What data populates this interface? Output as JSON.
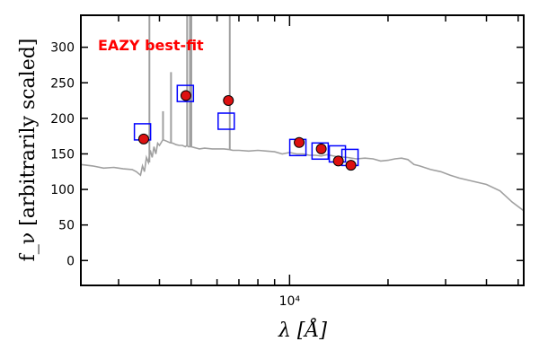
{
  "chart_data": {
    "type": "scatter",
    "title": "",
    "annotation": "EAZY best-fit",
    "annotation_color": "#ff0000",
    "xlabel": "λ [Å]",
    "ylabel": "f_ν [arbitrarily scaled]",
    "xscale": "log",
    "xlim": [
      2300,
      52000
    ],
    "ylim": [
      -35,
      345
    ],
    "yticks": [
      0,
      50,
      100,
      150,
      200,
      250,
      300
    ],
    "xticks_major": [
      {
        "value": 10000,
        "label": "10⁴"
      }
    ],
    "xticks_minor": [
      3000,
      4000,
      5000,
      6000,
      7000,
      8000,
      9000,
      20000,
      30000,
      40000,
      50000
    ],
    "grid": false,
    "legend": "none",
    "colors": {
      "template": "#a0a0a0",
      "model": "#0000ff",
      "observed_face": "#dd1111",
      "observed_edge": "#000000"
    },
    "series": [
      {
        "name": "",
        "style": "line",
        "x": [
          2300,
          2500,
          2700,
          2900,
          3100,
          3300,
          3400,
          3500,
          3550,
          3600,
          3650,
          3700,
          3750,
          3800,
          3850,
          3900,
          3950,
          4000,
          4100,
          4200,
          4300,
          4400,
          4500,
          4600,
          4700,
          4800,
          4861,
          4900,
          5000,
          5100,
          5200,
          5300,
          5500,
          5800,
          6000,
          6300,
          6563,
          6700,
          7000,
          7500,
          8000,
          8500,
          9000,
          9500,
          10000,
          10500,
          11000,
          11500,
          12000,
          12500,
          13000,
          14000,
          15000,
          16000,
          17000,
          18000,
          19000,
          20000,
          21000,
          22000,
          23000,
          24000,
          25000,
          27000,
          29000,
          31000,
          33000,
          36000,
          40000,
          44000,
          48000,
          52000
        ],
        "y": [
          135,
          133,
          130,
          131,
          129,
          128,
          125,
          120,
          133,
          125,
          145,
          138,
          155,
          145,
          160,
          150,
          165,
          162,
          170,
          168,
          166,
          165,
          163,
          162,
          162,
          160,
          162,
          160,
          160,
          159,
          158,
          157,
          158,
          157,
          157,
          157,
          156,
          155,
          155,
          154,
          155,
          154,
          153,
          150,
          152,
          150,
          150,
          148,
          148,
          147,
          149,
          146,
          145,
          143,
          144,
          143,
          140,
          141,
          143,
          144,
          142,
          135,
          133,
          128,
          125,
          120,
          116,
          112,
          107,
          98,
          82,
          70
        ]
      },
      {
        "name": "",
        "style": "emission-spikes",
        "x": [
          3727,
          4102,
          4340,
          4861,
          4959,
          5007,
          6563
        ],
        "y": [
          345,
          210,
          265,
          345,
          345,
          345,
          345
        ]
      },
      {
        "name": "",
        "style": "open-square",
        "x": [
          3550,
          4800,
          6400,
          10600,
          12400,
          14000,
          15300
        ],
        "y": [
          181,
          235,
          196,
          159,
          154,
          150,
          145
        ]
      },
      {
        "name": "",
        "style": "filled-circle",
        "x": [
          3580,
          4820,
          6500,
          10700,
          12500,
          14100,
          15400
        ],
        "y": [
          171,
          232,
          225,
          166,
          157,
          140,
          134
        ]
      }
    ]
  }
}
